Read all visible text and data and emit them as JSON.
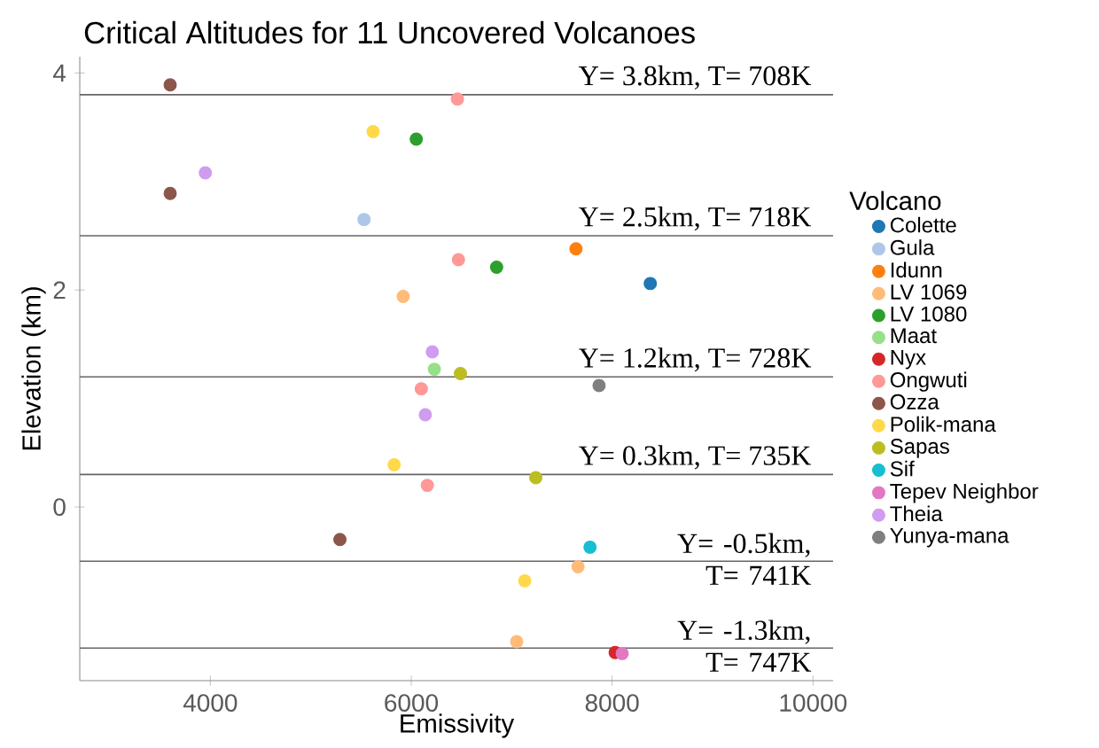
{
  "chart_data": {
    "type": "scatter",
    "title": "Critical Altitudes for 11 Uncovered Volcanoes",
    "xlabel": "Emissivity",
    "ylabel": "Elevation (km)",
    "legend_title": "Volcano",
    "legend": "right",
    "marker": "circle",
    "grid": false,
    "xlim": [
      2700,
      10200
    ],
    "ylim": [
      -1.6,
      4.15
    ],
    "xticks": [
      4000,
      6000,
      8000,
      10000
    ],
    "yticks": [
      0,
      2,
      4
    ],
    "series": [
      {
        "name": "Colette",
        "color": "#1f77b4",
        "x": [
          8380
        ],
        "values": [
          2.06
        ]
      },
      {
        "name": "Gula",
        "color": "#aec7e8",
        "x": [
          5530
        ],
        "values": [
          2.65
        ]
      },
      {
        "name": "Idunn",
        "color": "#ff7f0e",
        "x": [
          7640
        ],
        "values": [
          2.38
        ]
      },
      {
        "name": "LV 1069",
        "color": "#ffbb78",
        "x": [
          5920,
          7660,
          7050
        ],
        "values": [
          1.94,
          -0.55,
          -1.24
        ]
      },
      {
        "name": "LV 1080",
        "color": "#2ca02c",
        "x": [
          6050,
          6850
        ],
        "values": [
          3.39,
          2.21
        ]
      },
      {
        "name": "Maat",
        "color": "#98df8a",
        "x": [
          6230
        ],
        "values": [
          1.27
        ]
      },
      {
        "name": "Nyx",
        "color": "#d62728",
        "x": [
          8030
        ],
        "values": [
          -1.34
        ]
      },
      {
        "name": "Ongwuti",
        "color": "#ff9896",
        "x": [
          6460,
          6470,
          6100,
          6160
        ],
        "values": [
          3.76,
          2.28,
          1.09,
          0.2
        ]
      },
      {
        "name": "Ozza",
        "color": "#8c564b",
        "x": [
          3600,
          3600,
          5290
        ],
        "values": [
          3.89,
          2.89,
          -0.3
        ]
      },
      {
        "name": "Polik-mana",
        "color": "#ffd94a",
        "x": [
          5620,
          5830,
          7130
        ],
        "values": [
          3.46,
          0.39,
          -0.68
        ]
      },
      {
        "name": "Sapas",
        "color": "#bcbd22",
        "x": [
          6490,
          7240
        ],
        "values": [
          1.23,
          0.27
        ]
      },
      {
        "name": "Sif",
        "color": "#17becf",
        "x": [
          7780
        ],
        "values": [
          -0.37
        ]
      },
      {
        "name": "Tepev Neighbor",
        "color": "#e377c2",
        "x": [
          8100
        ],
        "values": [
          -1.35
        ]
      },
      {
        "name": "Theia",
        "color": "#cf9cf0",
        "x": [
          3950,
          6210,
          6140
        ],
        "values": [
          3.08,
          1.43,
          0.85
        ]
      },
      {
        "name": "Yunya-mana",
        "color": "#7f7f7f",
        "x": [
          7870
        ],
        "values": [
          1.12
        ]
      }
    ],
    "ref_lines": [
      {
        "axis": "y",
        "value": 3.8,
        "label": "Y= 3.8km, T= 708K"
      },
      {
        "axis": "y",
        "value": 2.5,
        "label": "Y= 2.5km, T= 718K"
      },
      {
        "axis": "y",
        "value": 1.2,
        "label": "Y= 1.2km, T= 728K"
      },
      {
        "axis": "y",
        "value": 0.3,
        "label": "Y= 0.3km, T= 735K"
      },
      {
        "axis": "y",
        "value": -0.5,
        "label": "Y= -0.5km, T= 741K"
      },
      {
        "axis": "y",
        "value": -1.3,
        "label": "Y= -1.3km, T= 747K"
      }
    ]
  }
}
